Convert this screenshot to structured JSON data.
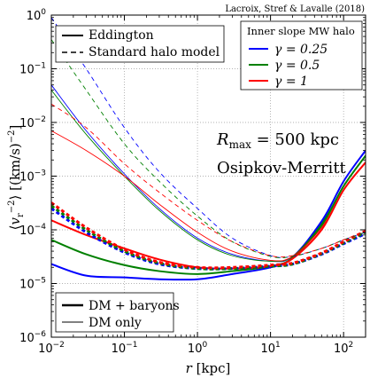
{
  "chart_data": {
    "type": "line",
    "credit": "Lacroix, Stref & Lavalle (2018)",
    "xlabel": "r [kpc]",
    "ylabel": "⟨v_r^−2⟩ [(km/s)^−2]",
    "xscale": "log",
    "yscale": "log",
    "xlim": [
      0.01,
      200
    ],
    "ylim": [
      1e-06,
      1
    ],
    "grid": true,
    "x_ticks": [
      "10^-2",
      "10^-1",
      "10^0",
      "10^1",
      "10^2"
    ],
    "y_ticks": [
      "10^-6",
      "10^-5",
      "10^-4",
      "10^-3",
      "10^-2",
      "10^-1",
      "10^0"
    ],
    "annotations": [
      "R_max = 500 kpc",
      "Osipkov-Merritt"
    ],
    "legend_method": {
      "placement": "top-left",
      "entries": [
        {
          "label": "Eddington",
          "style": "solid"
        },
        {
          "label": "Standard halo model",
          "style": "dashed"
        }
      ]
    },
    "legend_gamma": {
      "placement": "top-right",
      "title": "Inner slope MW halo",
      "entries": [
        {
          "label": "γ = 0.25",
          "color": "#0000ff"
        },
        {
          "label": "γ = 0.5",
          "color": "#008000"
        },
        {
          "label": "γ = 1",
          "color": "#ff0000"
        }
      ]
    },
    "legend_model": {
      "placement": "bottom-left",
      "entries": [
        {
          "label": "DM + baryons",
          "width": "thick"
        },
        {
          "label": "DM only",
          "width": "thin"
        }
      ]
    },
    "series": [
      {
        "gamma": "0.25",
        "color": "#0000ff",
        "method": "Eddington",
        "model": "DM + baryons",
        "style": "solid",
        "width": "thick",
        "x": [
          0.01,
          0.03,
          0.1,
          0.3,
          1,
          3,
          10,
          20,
          50,
          100,
          200
        ],
        "y": [
          2.3e-05,
          1.4e-05,
          1.3e-05,
          1.2e-05,
          1.2e-05,
          1.5e-05,
          2e-05,
          3e-05,
          0.00014,
          0.0008,
          0.003
        ]
      },
      {
        "gamma": "0.5",
        "color": "#008000",
        "method": "Eddington",
        "model": "DM + baryons",
        "style": "solid",
        "width": "thick",
        "x": [
          0.01,
          0.03,
          0.1,
          0.3,
          1,
          3,
          10,
          20,
          50,
          100,
          200
        ],
        "y": [
          6.5e-05,
          3.5e-05,
          2.2e-05,
          1.7e-05,
          1.5e-05,
          1.7e-05,
          2.1e-05,
          3e-05,
          0.00012,
          0.00065,
          0.0024
        ]
      },
      {
        "gamma": "1",
        "color": "#ff0000",
        "method": "Eddington",
        "model": "DM + baryons",
        "style": "solid",
        "width": "thick",
        "x": [
          0.01,
          0.03,
          0.1,
          0.3,
          1,
          3,
          10,
          20,
          50,
          100,
          200
        ],
        "y": [
          0.00015,
          8e-05,
          4.5e-05,
          2.8e-05,
          2e-05,
          1.9e-05,
          2.1e-05,
          2.9e-05,
          0.0001,
          0.00055,
          0.0018
        ]
      },
      {
        "gamma": "0.25",
        "color": "#0000ff",
        "method": "Standard halo model",
        "model": "DM + baryons",
        "style": "dashed",
        "width": "thick",
        "x": [
          0.01,
          0.03,
          0.1,
          0.3,
          1,
          3,
          10,
          20,
          50,
          100,
          200
        ],
        "y": [
          0.00025,
          9e-05,
          3.8e-05,
          2.3e-05,
          1.9e-05,
          1.9e-05,
          2.1e-05,
          2.3e-05,
          3.5e-05,
          5.5e-05,
          8.5e-05
        ]
      },
      {
        "gamma": "0.5",
        "color": "#008000",
        "method": "Standard halo model",
        "model": "DM + baryons",
        "style": "dashed",
        "width": "thick",
        "x": [
          0.01,
          0.03,
          0.1,
          0.3,
          1,
          3,
          10,
          20,
          50,
          100,
          200
        ],
        "y": [
          0.00028,
          0.0001,
          4e-05,
          2.4e-05,
          1.9e-05,
          1.9e-05,
          2.1e-05,
          2.3e-05,
          3.6e-05,
          5.7e-05,
          9e-05
        ]
      },
      {
        "gamma": "1",
        "color": "#ff0000",
        "method": "Standard halo model",
        "model": "DM + baryons",
        "style": "dashed",
        "width": "thick",
        "x": [
          0.01,
          0.03,
          0.1,
          0.3,
          1,
          3,
          10,
          20,
          50,
          100,
          200
        ],
        "y": [
          0.00032,
          0.00011,
          4.3e-05,
          2.5e-05,
          2e-05,
          2e-05,
          2.2e-05,
          2.4e-05,
          3.7e-05,
          6e-05,
          9.5e-05
        ]
      },
      {
        "gamma": "0.25",
        "color": "#0000ff",
        "method": "Eddington",
        "model": "DM only",
        "style": "solid",
        "width": "thin",
        "x": [
          0.01,
          0.03,
          0.1,
          0.3,
          1,
          3,
          10,
          20,
          50,
          100,
          200
        ],
        "y": [
          0.05,
          0.007,
          0.0011,
          0.00025,
          7e-05,
          3.5e-05,
          2.6e-05,
          3.2e-05,
          0.00015,
          0.0008,
          0.003
        ]
      },
      {
        "gamma": "0.5",
        "color": "#008000",
        "method": "Eddington",
        "model": "DM only",
        "style": "solid",
        "width": "thin",
        "x": [
          0.01,
          0.03,
          0.1,
          0.3,
          1,
          3,
          10,
          20,
          50,
          100,
          200
        ],
        "y": [
          0.04,
          0.006,
          0.001,
          0.00023,
          6.5e-05,
          3.3e-05,
          2.6e-05,
          3.2e-05,
          0.00013,
          0.00065,
          0.0024
        ]
      },
      {
        "gamma": "1",
        "color": "#ff0000",
        "method": "Eddington",
        "model": "DM only",
        "style": "solid",
        "width": "thin",
        "x": [
          0.01,
          0.03,
          0.1,
          0.3,
          1,
          3,
          10,
          20,
          50,
          100,
          200
        ],
        "y": [
          0.007,
          0.003,
          0.001,
          0.0003,
          9e-05,
          4e-05,
          2.7e-05,
          3.2e-05,
          0.00011,
          0.00055,
          0.0018
        ]
      },
      {
        "gamma": "0.25",
        "color": "#0000ff",
        "method": "Standard halo model",
        "model": "DM only",
        "style": "dashed",
        "width": "thin",
        "x": [
          0.01,
          0.03,
          0.1,
          0.3,
          1,
          3,
          10,
          20,
          50,
          100,
          200
        ],
        "y": [
          0.9,
          0.1,
          0.008,
          0.0012,
          0.00025,
          7e-05,
          3.3e-05,
          3.2e-05,
          4.5e-05,
          6.5e-05,
          9e-05
        ]
      },
      {
        "gamma": "0.5",
        "color": "#008000",
        "method": "Standard halo model",
        "model": "DM only",
        "style": "dashed",
        "width": "thin",
        "x": [
          0.01,
          0.03,
          0.1,
          0.3,
          1,
          3,
          10,
          20,
          50,
          100,
          200
        ],
        "y": [
          0.35,
          0.04,
          0.004,
          0.0008,
          0.00018,
          6e-05,
          3.2e-05,
          3.2e-05,
          4.5e-05,
          6.5e-05,
          9e-05
        ]
      },
      {
        "gamma": "1",
        "color": "#ff0000",
        "method": "Standard halo model",
        "model": "DM only",
        "style": "dashed",
        "width": "thin",
        "x": [
          0.01,
          0.03,
          0.1,
          0.3,
          1,
          3,
          10,
          20,
          50,
          100,
          200
        ],
        "y": [
          0.022,
          0.008,
          0.0017,
          0.0005,
          0.00015,
          6e-05,
          3.3e-05,
          3.3e-05,
          4.5e-05,
          6.5e-05,
          9.5e-05
        ]
      }
    ]
  }
}
